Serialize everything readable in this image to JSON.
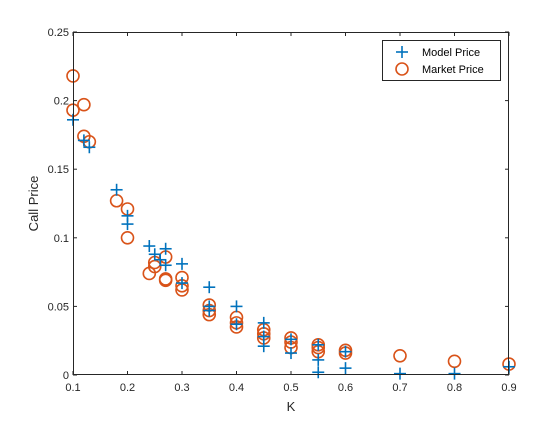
{
  "chart_data": {
    "type": "scatter",
    "title": "",
    "xlabel": "K",
    "ylabel": "Call Price",
    "xlim": [
      0.1,
      0.9
    ],
    "ylim": [
      0,
      0.25
    ],
    "xticks": [
      0.1,
      0.2,
      0.3,
      0.4,
      0.5,
      0.6,
      0.7,
      0.8,
      0.9
    ],
    "xtick_labels": [
      "0.1",
      "0.2",
      "0.3",
      "0.4",
      "0.5",
      "0.6",
      "0.7",
      "0.8",
      "0.9"
    ],
    "yticks": [
      0,
      0.05,
      0.1,
      0.15,
      0.2,
      0.25
    ],
    "ytick_labels": [
      "0",
      "0.05",
      "0.1",
      "0.15",
      "0.2",
      "0.25"
    ],
    "grid": false,
    "box": true,
    "legend_position": "top-right",
    "series": [
      {
        "name": "Model Price",
        "marker": "plus",
        "color": "#0072BD",
        "points": [
          [
            0.1,
            0.186
          ],
          [
            0.12,
            0.171
          ],
          [
            0.13,
            0.166
          ],
          [
            0.18,
            0.135
          ],
          [
            0.2,
            0.116
          ],
          [
            0.2,
            0.11
          ],
          [
            0.24,
            0.094
          ],
          [
            0.25,
            0.088
          ],
          [
            0.26,
            0.084
          ],
          [
            0.27,
            0.092
          ],
          [
            0.27,
            0.08
          ],
          [
            0.3,
            0.081
          ],
          [
            0.3,
            0.067
          ],
          [
            0.35,
            0.064
          ],
          [
            0.35,
            0.05
          ],
          [
            0.35,
            0.047
          ],
          [
            0.4,
            0.05
          ],
          [
            0.4,
            0.037
          ],
          [
            0.45,
            0.038
          ],
          [
            0.45,
            0.028
          ],
          [
            0.45,
            0.021
          ],
          [
            0.5,
            0.026
          ],
          [
            0.5,
            0.016
          ],
          [
            0.55,
            0.022
          ],
          [
            0.55,
            0.011
          ],
          [
            0.55,
            0.002
          ],
          [
            0.6,
            0.017
          ],
          [
            0.6,
            0.005
          ],
          [
            0.7,
            0.001
          ],
          [
            0.8,
            0.001
          ],
          [
            0.9,
            0.006
          ]
        ]
      },
      {
        "name": "Market Price",
        "marker": "circle",
        "color": "#D95319",
        "points": [
          [
            0.1,
            0.218
          ],
          [
            0.1,
            0.193
          ],
          [
            0.12,
            0.197
          ],
          [
            0.12,
            0.174
          ],
          [
            0.13,
            0.17
          ],
          [
            0.18,
            0.127
          ],
          [
            0.2,
            0.121
          ],
          [
            0.2,
            0.1
          ],
          [
            0.24,
            0.074
          ],
          [
            0.25,
            0.082
          ],
          [
            0.25,
            0.079
          ],
          [
            0.27,
            0.086
          ],
          [
            0.27,
            0.07
          ],
          [
            0.27,
            0.069
          ],
          [
            0.3,
            0.071
          ],
          [
            0.3,
            0.065
          ],
          [
            0.3,
            0.062
          ],
          [
            0.35,
            0.051
          ],
          [
            0.35,
            0.047
          ],
          [
            0.35,
            0.044
          ],
          [
            0.4,
            0.042
          ],
          [
            0.4,
            0.038
          ],
          [
            0.4,
            0.035
          ],
          [
            0.45,
            0.033
          ],
          [
            0.45,
            0.03
          ],
          [
            0.45,
            0.027
          ],
          [
            0.5,
            0.027
          ],
          [
            0.5,
            0.024
          ],
          [
            0.5,
            0.02
          ],
          [
            0.55,
            0.022
          ],
          [
            0.55,
            0.02
          ],
          [
            0.55,
            0.017
          ],
          [
            0.6,
            0.018
          ],
          [
            0.6,
            0.016
          ],
          [
            0.7,
            0.014
          ],
          [
            0.8,
            0.01
          ],
          [
            0.9,
            0.008
          ]
        ]
      }
    ]
  }
}
